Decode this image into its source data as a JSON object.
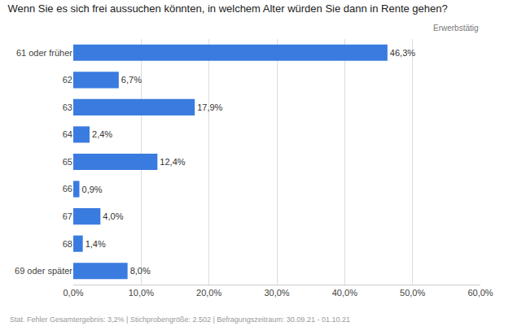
{
  "chart_data": {
    "type": "bar",
    "orientation": "horizontal",
    "title": "Wenn Sie es sich frei aussuchen könnten, in welchem Alter würden Sie dann in Rente gehen?",
    "subtitle": "Erwerbstätig",
    "categories": [
      "61 oder früher",
      "62",
      "63",
      "64",
      "65",
      "66",
      "67",
      "68",
      "69 oder später"
    ],
    "values": [
      46.3,
      6.7,
      17.9,
      2.4,
      12.4,
      0.9,
      4.0,
      1.4,
      8.0
    ],
    "value_labels": [
      "46,3%",
      "6,7%",
      "17,9%",
      "2,4%",
      "12,4%",
      "0,9%",
      "4,0%",
      "1,4%",
      "8,0%"
    ],
    "data_labels": true,
    "color": "#3a7be0",
    "xlim": [
      0,
      60
    ],
    "xticks": [
      {
        "value": 0,
        "label": "0,0%"
      },
      {
        "value": 10,
        "label": "10,0%"
      },
      {
        "value": 20,
        "label": "20,0%"
      },
      {
        "value": 30,
        "label": "30,0%"
      },
      {
        "value": 40,
        "label": "40,0%"
      },
      {
        "value": 50,
        "label": "50,0%"
      },
      {
        "value": 60,
        "label": "60,0%"
      }
    ],
    "grid": true,
    "footnote": "Stat. Fehler Gesamtergebnis: 3,2% | Stichprobengröße: 2.502 | Befragungszeitraum: 30.09.21 - 01.10.21"
  }
}
